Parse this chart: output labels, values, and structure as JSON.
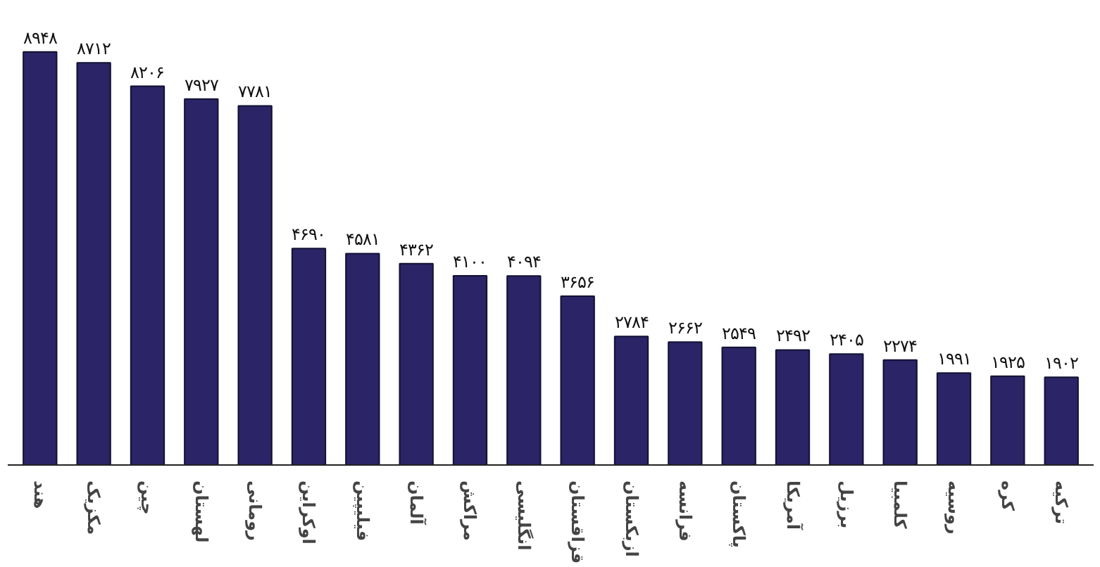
{
  "chart_data": {
    "type": "bar",
    "categories": [
      "هند",
      "مکزیک",
      "چین",
      "لهستان",
      "رومانی",
      "اوکراین",
      "فیلیپین",
      "آلمان",
      "مراکش",
      "انگلیسی",
      "قزاقستان",
      "ازبکستان",
      "فرانسه",
      "پاکستان",
      "آمریکا",
      "برزیل",
      "کلمبیا",
      "روسیه",
      "کره",
      "ترکیه"
    ],
    "values": [
      8948,
      8712,
      8206,
      7927,
      7781,
      4690,
      4581,
      4362,
      4100,
      4094,
      3656,
      2784,
      2662,
      2549,
      2492,
      2405,
      2274,
      1991,
      1925,
      1902
    ],
    "value_labels": [
      "۸۹۴۸",
      "۸۷۱۲",
      "۸۲۰۶",
      "۷۹۲۷",
      "۷۷۸۱",
      "۴۶۹۰",
      "۴۵۸۱",
      "۴۳۶۲",
      "۴۱۰۰",
      "۴۰۹۴",
      "۳۶۵۶",
      "۲۷۸۴",
      "۲۶۶۲",
      "۲۵۴۹",
      "۲۴۹۲",
      "۲۴۰۵",
      "۲۲۷۴",
      "۱۹۹۱",
      "۱۹۲۵",
      "۱۹۰۲"
    ],
    "color": "#2b2466",
    "grid": false
  }
}
